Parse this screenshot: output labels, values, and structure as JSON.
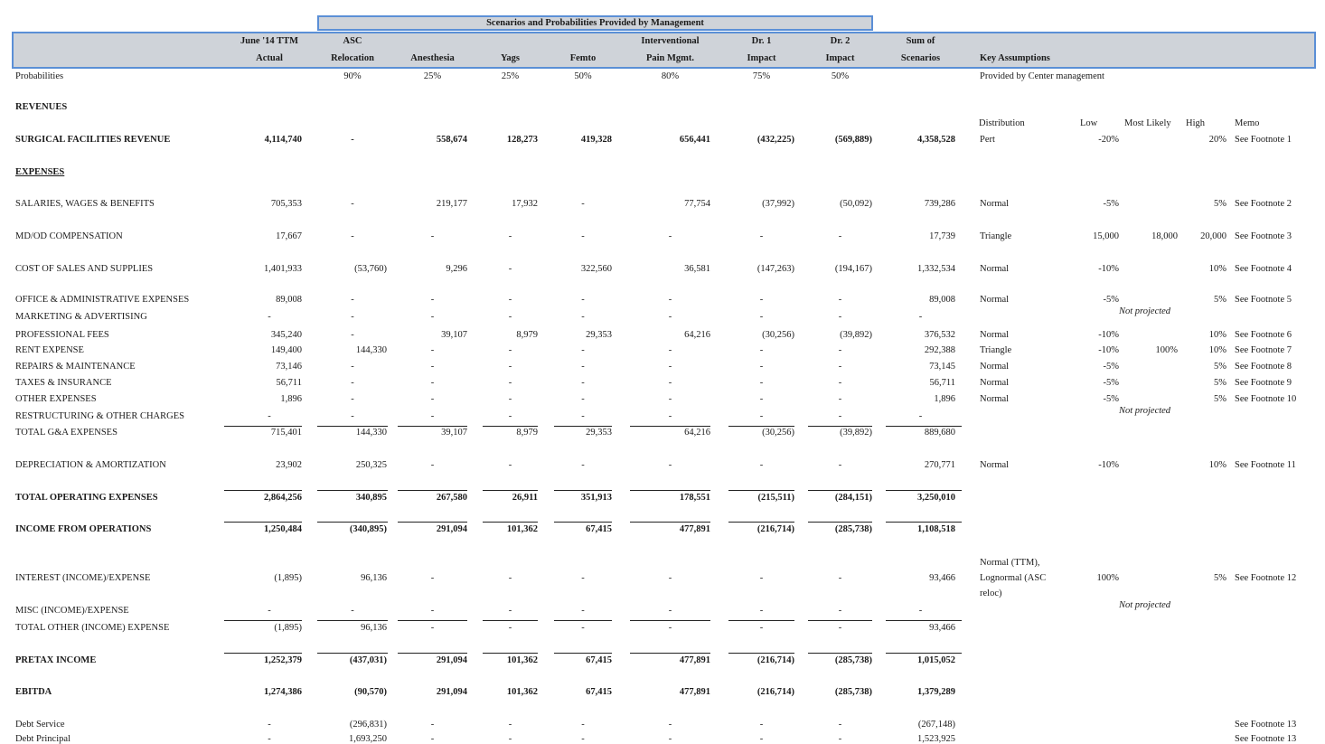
{
  "title": "Scenarios and Probabilities Provided by Management",
  "columns": [
    {
      "line1": "June '14 TTM",
      "line2": "Actual"
    },
    {
      "line1": "ASC",
      "line2": "Relocation"
    },
    {
      "line1": "",
      "line2": "Anesthesia"
    },
    {
      "line1": "",
      "line2": "Yags"
    },
    {
      "line1": "",
      "line2": "Femto"
    },
    {
      "line1": "Interventional",
      "line2": "Pain Mgmt."
    },
    {
      "line1": "Dr. 1",
      "line2": "Impact"
    },
    {
      "line1": "Dr. 2",
      "line2": "Impact"
    },
    {
      "line1": "Sum of",
      "line2": "Scenarios"
    }
  ],
  "key_assumptions_header": "Key Assumptions",
  "probabilities": {
    "label": "Probabilities",
    "values": [
      "",
      "90%",
      "25%",
      "25%",
      "50%",
      "80%",
      "75%",
      "50%",
      ""
    ],
    "note": "Provided by Center management"
  },
  "sections": {
    "revenues": "REVENUES",
    "expenses": "EXPENSES"
  },
  "assumption_headers": {
    "distribution": "Distribution",
    "low": "Low",
    "most_likely": "Most Likely",
    "high": "High",
    "memo": "Memo"
  },
  "rows": {
    "surgical": {
      "label": "SURGICAL FACILITIES REVENUE",
      "values": [
        "4,114,740",
        "-",
        "558,674",
        "128,273",
        "419,328",
        "656,441",
        "(432,225)",
        "(569,889)",
        "4,358,528"
      ],
      "dist": "Pert",
      "low": "-20%",
      "ml": "",
      "high": "20%",
      "memo": "See Footnote 1"
    },
    "salaries": {
      "label": "SALARIES, WAGES & BENEFITS",
      "values": [
        "705,353",
        "-",
        "219,177",
        "17,932",
        "-",
        "77,754",
        "(37,992)",
        "(50,092)",
        "739,286"
      ],
      "dist": "Normal",
      "low": "-5%",
      "ml": "",
      "high": "5%",
      "memo": "See Footnote 2"
    },
    "mdod": {
      "label": "MD/OD COMPENSATION",
      "values": [
        "17,667",
        "-",
        "-",
        "-",
        "-",
        "-",
        "-",
        "-",
        "17,739"
      ],
      "dist": "Triangle",
      "low": "15,000",
      "ml": "18,000",
      "high": "20,000",
      "memo": "See Footnote 3"
    },
    "cogs": {
      "label": "COST OF SALES AND SUPPLIES",
      "values": [
        "1,401,933",
        "(53,760)",
        "9,296",
        "-",
        "322,560",
        "36,581",
        "(147,263)",
        "(194,167)",
        "1,332,534"
      ],
      "dist": "Normal",
      "low": "-10%",
      "ml": "",
      "high": "10%",
      "memo": "See Footnote 4"
    },
    "office": {
      "label": "OFFICE & ADMINISTRATIVE EXPENSES",
      "values": [
        "89,008",
        "-",
        "-",
        "-",
        "-",
        "-",
        "-",
        "-",
        "89,008"
      ],
      "dist": "Normal",
      "low": "-5%",
      "ml": "",
      "high": "5%",
      "memo": "See Footnote 5"
    },
    "marketing": {
      "label": "MARKETING & ADVERTISING",
      "values": [
        "-",
        "-",
        "-",
        "-",
        "-",
        "-",
        "-",
        "-",
        "-"
      ],
      "note": "Not projected"
    },
    "professional": {
      "label": "PROFESSIONAL FEES",
      "values": [
        "345,240",
        "-",
        "39,107",
        "8,979",
        "29,353",
        "64,216",
        "(30,256)",
        "(39,892)",
        "376,532"
      ],
      "dist": "Normal",
      "low": "-10%",
      "ml": "",
      "high": "10%",
      "memo": "See Footnote 6"
    },
    "rent": {
      "label": "RENT EXPENSE",
      "values": [
        "149,400",
        "144,330",
        "-",
        "-",
        "-",
        "-",
        "-",
        "-",
        "292,388"
      ],
      "dist": "Triangle",
      "low": "-10%",
      "ml": "100%",
      "high": "10%",
      "memo": "See Footnote 7"
    },
    "repairs": {
      "label": "REPAIRS & MAINTENANCE",
      "values": [
        "73,146",
        "-",
        "-",
        "-",
        "-",
        "-",
        "-",
        "-",
        "73,145"
      ],
      "dist": "Normal",
      "low": "-5%",
      "ml": "",
      "high": "5%",
      "memo": "See Footnote 8"
    },
    "taxes": {
      "label": "TAXES & INSURANCE",
      "values": [
        "56,711",
        "-",
        "-",
        "-",
        "-",
        "-",
        "-",
        "-",
        "56,711"
      ],
      "dist": "Normal",
      "low": "-5%",
      "ml": "",
      "high": "5%",
      "memo": "See Footnote 9"
    },
    "other": {
      "label": "OTHER EXPENSES",
      "values": [
        "1,896",
        "-",
        "-",
        "-",
        "-",
        "-",
        "-",
        "-",
        "1,896"
      ],
      "dist": "Normal",
      "low": "-5%",
      "ml": "",
      "high": "5%",
      "memo": "See Footnote 10"
    },
    "restructuring": {
      "label": "RESTRUCTURING & OTHER CHARGES",
      "values": [
        "-",
        "-",
        "-",
        "-",
        "-",
        "-",
        "-",
        "-",
        "-"
      ],
      "note": "Not projected"
    },
    "total_ga": {
      "label": "TOTAL G&A EXPENSES",
      "values": [
        "715,401",
        "144,330",
        "39,107",
        "8,979",
        "29,353",
        "64,216",
        "(30,256)",
        "(39,892)",
        "889,680"
      ]
    },
    "depreciation": {
      "label": "DEPRECIATION & AMORTIZATION",
      "values": [
        "23,902",
        "250,325",
        "-",
        "-",
        "-",
        "-",
        "-",
        "-",
        "270,771"
      ],
      "dist": "Normal",
      "low": "-10%",
      "ml": "",
      "high": "10%",
      "memo": "See Footnote 11"
    },
    "total_opex": {
      "label": "TOTAL OPERATING EXPENSES",
      "values": [
        "2,864,256",
        "340,895",
        "267,580",
        "26,911",
        "351,913",
        "178,551",
        "(215,511)",
        "(284,151)",
        "3,250,010"
      ]
    },
    "income_ops": {
      "label": "INCOME FROM OPERATIONS",
      "values": [
        "1,250,484",
        "(340,895)",
        "291,094",
        "101,362",
        "67,415",
        "477,891",
        "(216,714)",
        "(285,738)",
        "1,108,518"
      ]
    },
    "interest": {
      "label": "INTEREST (INCOME)/EXPENSE",
      "values": [
        "(1,895)",
        "96,136",
        "-",
        "-",
        "-",
        "-",
        "-",
        "-",
        "93,466"
      ],
      "dist_lines": [
        "Normal (TTM),",
        "Lognormal (ASC",
        "reloc)"
      ],
      "low": "100%",
      "ml": "",
      "high": "5%",
      "memo": "See Footnote 12"
    },
    "misc": {
      "label": "MISC (INCOME)/EXPENSE",
      "values": [
        "-",
        "-",
        "-",
        "-",
        "-",
        "-",
        "-",
        "-",
        "-"
      ],
      "note": "Not projected"
    },
    "total_other": {
      "label": "TOTAL OTHER (INCOME) EXPENSE",
      "values": [
        "(1,895)",
        "96,136",
        "-",
        "-",
        "-",
        "-",
        "-",
        "-",
        "93,466"
      ]
    },
    "pretax": {
      "label": "PRETAX INCOME",
      "values": [
        "1,252,379",
        "(437,031)",
        "291,094",
        "101,362",
        "67,415",
        "477,891",
        "(216,714)",
        "(285,738)",
        "1,015,052"
      ]
    },
    "ebitda": {
      "label": "EBITDA",
      "values": [
        "1,274,386",
        "(90,570)",
        "291,094",
        "101,362",
        "67,415",
        "477,891",
        "(216,714)",
        "(285,738)",
        "1,379,289"
      ]
    },
    "debt_service": {
      "label": "Debt Service",
      "values": [
        "-",
        "(296,831)",
        "-",
        "-",
        "-",
        "-",
        "-",
        "-",
        "(267,148)"
      ],
      "memo": "See Footnote 13"
    },
    "debt_principal": {
      "label": "Debt Principal",
      "values": [
        "-",
        "1,693,250",
        "-",
        "-",
        "-",
        "-",
        "-",
        "-",
        "1,523,925"
      ],
      "memo": "See Footnote 13"
    }
  }
}
